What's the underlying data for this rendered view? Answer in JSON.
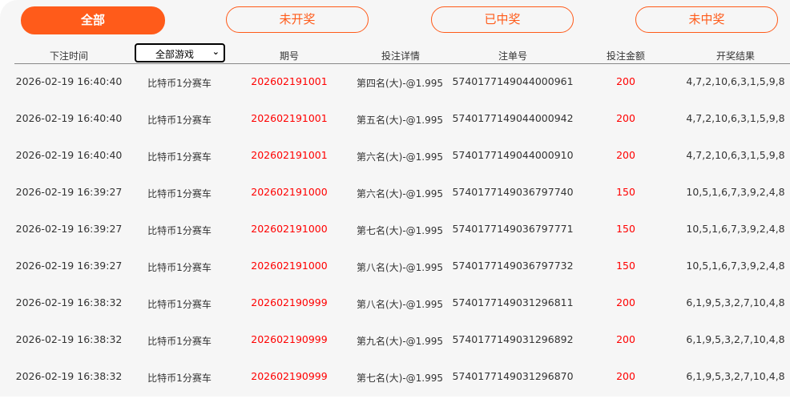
{
  "tabs": [
    {
      "label": "全部",
      "active": true
    },
    {
      "label": "未开奖"
    },
    {
      "label": "已中奖"
    },
    {
      "label": "未中奖"
    }
  ],
  "accent_color": "#ff5b1a",
  "columns": [
    "下注时间",
    "全部游戏",
    "期号",
    "投注详情",
    "注单号",
    "投注金额",
    "开奖结果"
  ],
  "game_filter": {
    "selected": "全部游戏",
    "icon": "chevron-down-icon"
  },
  "rows": [
    {
      "time": "2026-02-19 16:40:40",
      "game": "比特币1分赛车",
      "period": "202602191001",
      "detail": "第四名(大)-@1.995",
      "order": "5740177149044000961",
      "amount": "200",
      "result": "4,7,2,10,6,3,1,5,9,8"
    },
    {
      "time": "2026-02-19 16:40:40",
      "game": "比特币1分赛车",
      "period": "202602191001",
      "detail": "第五名(大)-@1.995",
      "order": "5740177149044000942",
      "amount": "200",
      "result": "4,7,2,10,6,3,1,5,9,8"
    },
    {
      "time": "2026-02-19 16:40:40",
      "game": "比特币1分赛车",
      "period": "202602191001",
      "detail": "第六名(大)-@1.995",
      "order": "5740177149044000910",
      "amount": "200",
      "result": "4,7,2,10,6,3,1,5,9,8"
    },
    {
      "time": "2026-02-19 16:39:27",
      "game": "比特币1分赛车",
      "period": "202602191000",
      "detail": "第六名(大)-@1.995",
      "order": "5740177149036797740",
      "amount": "150",
      "result": "10,5,1,6,7,3,9,2,4,8"
    },
    {
      "time": "2026-02-19 16:39:27",
      "game": "比特币1分赛车",
      "period": "202602191000",
      "detail": "第七名(大)-@1.995",
      "order": "5740177149036797771",
      "amount": "150",
      "result": "10,5,1,6,7,3,9,2,4,8"
    },
    {
      "time": "2026-02-19 16:39:27",
      "game": "比特币1分赛车",
      "period": "202602191000",
      "detail": "第八名(大)-@1.995",
      "order": "5740177149036797732",
      "amount": "150",
      "result": "10,5,1,6,7,3,9,2,4,8"
    },
    {
      "time": "2026-02-19 16:38:32",
      "game": "比特币1分赛车",
      "period": "202602190999",
      "detail": "第八名(大)-@1.995",
      "order": "5740177149031296811",
      "amount": "200",
      "result": "6,1,9,5,3,2,7,10,4,8"
    },
    {
      "time": "2026-02-19 16:38:32",
      "game": "比特币1分赛车",
      "period": "202602190999",
      "detail": "第九名(大)-@1.995",
      "order": "5740177149031296892",
      "amount": "200",
      "result": "6,1,9,5,3,2,7,10,4,8"
    },
    {
      "time": "2026-02-19 16:38:32",
      "game": "比特币1分赛车",
      "period": "202602190999",
      "detail": "第七名(大)-@1.995",
      "order": "5740177149031296870",
      "amount": "200",
      "result": "6,1,9,5,3,2,7,10,4,8"
    }
  ]
}
